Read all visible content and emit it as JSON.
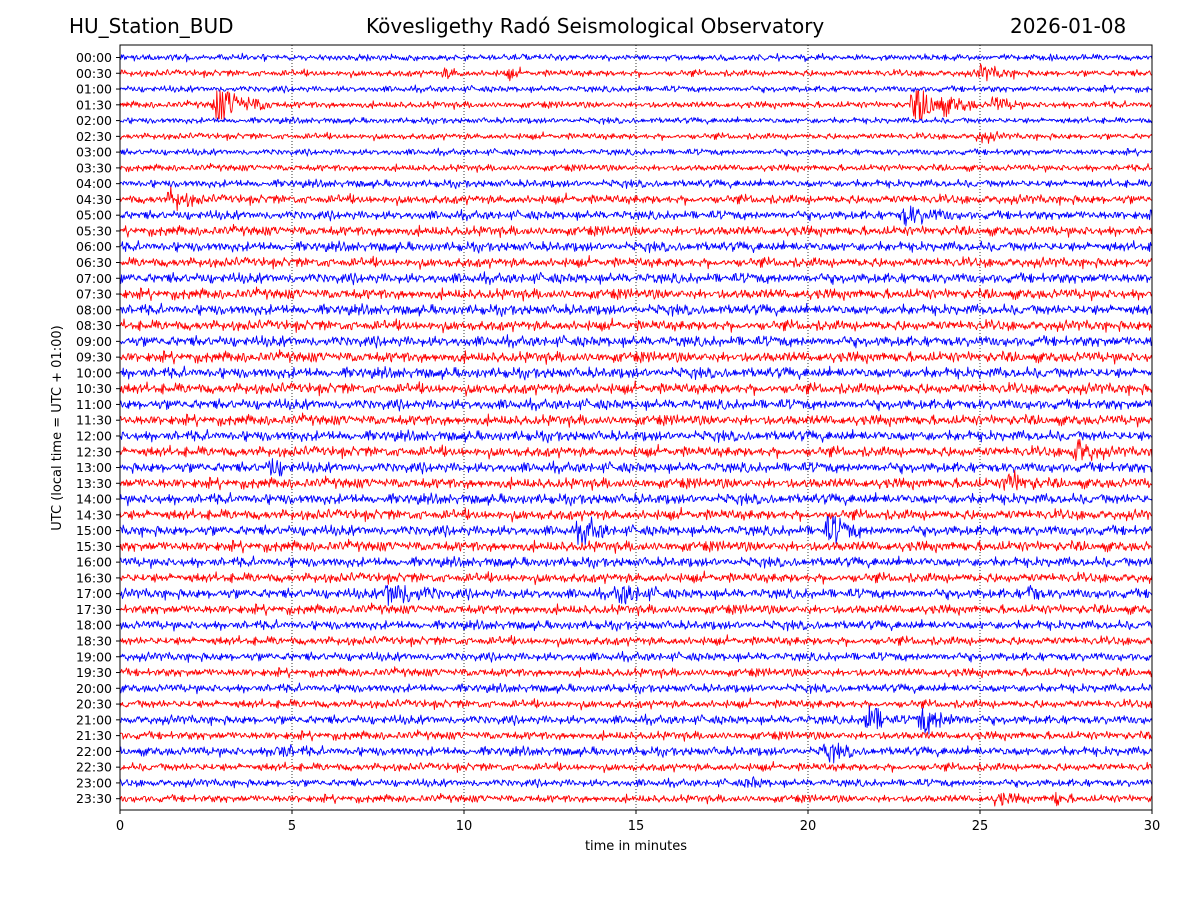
{
  "header": {
    "station": "HU_Station_BUD",
    "observatory": "Köveslig­ethy Radó Seismological Observatory",
    "date": "2026-01-08"
  },
  "chart_data": {
    "type": "line",
    "title": "Köveslig­ethy Radó Seismological Observatory",
    "xlabel": "time in minutes",
    "ylabel": "UTC (local time = UTC + 01:00)",
    "xlim": [
      0,
      30
    ],
    "xticks": [
      0,
      5,
      10,
      15,
      20,
      25,
      30
    ],
    "grid": "vertical dotted at x ticks",
    "colors": {
      "even": "#0000ff",
      "odd": "#ff0000"
    },
    "trace_labels": [
      "00:00",
      "00:30",
      "01:00",
      "01:30",
      "02:00",
      "02:30",
      "03:00",
      "03:30",
      "04:00",
      "04:30",
      "05:00",
      "05:30",
      "06:00",
      "06:30",
      "07:00",
      "07:30",
      "08:00",
      "08:30",
      "09:00",
      "09:30",
      "10:00",
      "10:30",
      "11:00",
      "11:30",
      "12:00",
      "12:30",
      "13:00",
      "13:30",
      "14:00",
      "14:30",
      "15:00",
      "15:30",
      "16:00",
      "16:30",
      "17:00",
      "17:30",
      "18:00",
      "18:30",
      "19:00",
      "19:30",
      "20:00",
      "20:30",
      "21:00",
      "21:30",
      "22:00",
      "22:30",
      "23:00",
      "23:30"
    ],
    "noise_level": [
      0.4,
      0.45,
      0.4,
      0.45,
      0.35,
      0.4,
      0.4,
      0.45,
      0.6,
      0.8,
      0.8,
      0.9,
      0.9,
      0.9,
      1.0,
      1.0,
      1.0,
      1.0,
      1.05,
      1.05,
      1.05,
      1.05,
      1.0,
      1.0,
      1.0,
      1.0,
      1.0,
      1.0,
      1.0,
      1.0,
      1.0,
      1.0,
      0.9,
      0.9,
      0.95,
      0.85,
      0.8,
      0.75,
      0.75,
      0.7,
      0.7,
      0.7,
      0.8,
      0.7,
      0.8,
      0.65,
      0.6,
      0.6
    ],
    "events": [
      {
        "trace": "00:30",
        "minute": 9.5,
        "amplitude": 1.6,
        "duration": 0.5
      },
      {
        "trace": "00:30",
        "minute": 11.3,
        "amplitude": 1.3,
        "duration": 0.5
      },
      {
        "trace": "00:30",
        "minute": 25.0,
        "amplitude": 2.2,
        "duration": 1.2
      },
      {
        "trace": "01:30",
        "minute": 2.8,
        "amplitude": 6.5,
        "duration": 1.6
      },
      {
        "trace": "01:30",
        "minute": 23.1,
        "amplitude": 7.0,
        "duration": 1.8
      },
      {
        "trace": "01:30",
        "minute": 25.4,
        "amplitude": 2.5,
        "duration": 0.8
      },
      {
        "trace": "02:30",
        "minute": 25.0,
        "amplitude": 2.0,
        "duration": 0.7
      },
      {
        "trace": "04:30",
        "minute": 1.5,
        "amplitude": 2.4,
        "duration": 0.9
      },
      {
        "trace": "05:00",
        "minute": 22.8,
        "amplitude": 2.2,
        "duration": 1.5
      },
      {
        "trace": "12:30",
        "minute": 27.8,
        "amplitude": 3.0,
        "duration": 0.8
      },
      {
        "trace": "13:00",
        "minute": 4.4,
        "amplitude": 2.0,
        "duration": 0.6
      },
      {
        "trace": "13:30",
        "minute": 25.8,
        "amplitude": 2.2,
        "duration": 1.0
      },
      {
        "trace": "15:00",
        "minute": 13.4,
        "amplitude": 3.5,
        "duration": 0.8
      },
      {
        "trace": "15:00",
        "minute": 20.6,
        "amplitude": 3.0,
        "duration": 1.0
      },
      {
        "trace": "17:00",
        "minute": 7.8,
        "amplitude": 3.2,
        "duration": 1.5
      },
      {
        "trace": "17:00",
        "minute": 14.5,
        "amplitude": 2.0,
        "duration": 1.2
      },
      {
        "trace": "17:00",
        "minute": 26.5,
        "amplitude": 2.8,
        "duration": 0.3
      },
      {
        "trace": "21:00",
        "minute": 21.7,
        "amplitude": 5.0,
        "duration": 0.8
      },
      {
        "trace": "21:00",
        "minute": 23.3,
        "amplitude": 3.0,
        "duration": 1.5
      },
      {
        "trace": "22:00",
        "minute": 4.5,
        "amplitude": 1.6,
        "duration": 1.0
      },
      {
        "trace": "22:00",
        "minute": 20.5,
        "amplitude": 1.8,
        "duration": 1.0
      },
      {
        "trace": "23:00",
        "minute": 18.3,
        "amplitude": 1.5,
        "duration": 0.6
      },
      {
        "trace": "23:30",
        "minute": 25.5,
        "amplitude": 1.6,
        "duration": 0.8
      },
      {
        "trace": "23:30",
        "minute": 27.2,
        "amplitude": 1.8,
        "duration": 0.5
      }
    ]
  }
}
